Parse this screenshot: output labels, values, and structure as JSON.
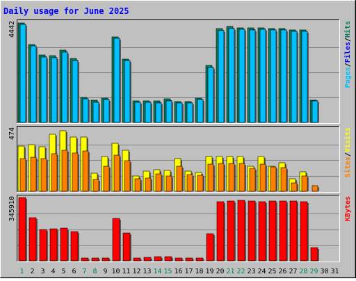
{
  "chart_data": {
    "title": "Daily usage for June 2025",
    "type": "bar",
    "days": [
      "1",
      "2",
      "3",
      "4",
      "5",
      "6",
      "7",
      "8",
      "9",
      "10",
      "11",
      "12",
      "13",
      "14",
      "15",
      "16",
      "17",
      "18",
      "19",
      "20",
      "21",
      "22",
      "23",
      "24",
      "25",
      "26",
      "27",
      "28",
      "29",
      "30",
      "31"
    ],
    "weekend_days": [
      "1",
      "7",
      "8",
      "14",
      "15",
      "21",
      "22",
      "28",
      "29"
    ],
    "panels": [
      {
        "id": "hits-files",
        "max_label": "4442",
        "ymax": 4442,
        "legend": [
          "Pages",
          "/",
          "Files",
          "/",
          "Hits"
        ],
        "series": [
          {
            "name": "Hits",
            "values": [
              4420,
              3470,
              2990,
              2970,
              3210,
              2840,
              1120,
              980,
              1080,
              3800,
              2820,
              950,
              950,
              950,
              1040,
              930,
              930,
              1080,
              2540,
              4170,
              4250,
              4210,
              4180,
              4190,
              4160,
              4160,
              4100,
              4090,
              980,
              0,
              0
            ]
          },
          {
            "name": "Files",
            "values": [
              4350,
              3380,
              2910,
              2880,
              3120,
              2760,
              1050,
              890,
              1010,
              3730,
              2750,
              890,
              880,
              870,
              960,
              860,
              860,
              1020,
              2450,
              4080,
              4160,
              4130,
              4100,
              4120,
              4100,
              4090,
              4050,
              4040,
              950,
              0,
              0
            ]
          },
          {
            "name": "Pages",
            "values": [
              4350,
              3380,
              2910,
              2880,
              3120,
              2760,
              1050,
              890,
              1010,
              3730,
              2750,
              890,
              880,
              870,
              960,
              860,
              860,
              1020,
              2450,
              4080,
              4160,
              4130,
              4100,
              4120,
              4100,
              4090,
              4050,
              4040,
              950,
              0,
              0
            ]
          }
        ]
      },
      {
        "id": "visits-sites",
        "max_label": "474",
        "ymax": 474,
        "legend": [
          "Sites",
          "/",
          "Visits"
        ],
        "series": [
          {
            "name": "Visits",
            "values": [
              340,
              352,
              338,
              432,
              460,
              410,
              410,
              135,
              265,
              362,
              312,
              115,
              155,
              165,
              160,
              250,
              155,
              140,
              265,
              262,
              265,
              262,
              188,
              262,
              192,
              218,
              95,
              150,
              0,
              0,
              0
            ]
          },
          {
            "name": "Sites",
            "values": [
              250,
              260,
              248,
              285,
              310,
              290,
              305,
              90,
              190,
              275,
              230,
              95,
              98,
              130,
              118,
              190,
              128,
              122,
              208,
              210,
              212,
              210,
              172,
              205,
              185,
              180,
              65,
              118,
              40,
              0,
              0
            ]
          }
        ]
      },
      {
        "id": "kbytes",
        "max_label": "345910",
        "ymax": 345910,
        "legend": [
          "KBytes"
        ],
        "series": [
          {
            "name": "KBytes",
            "values": [
              345910,
              236000,
              171000,
              175000,
              180000,
              159000,
              14000,
              14000,
              14000,
              232000,
              152000,
              17000,
              20000,
              22000,
              21000,
              16000,
              16000,
              16000,
              147000,
              322000,
              326000,
              330000,
              327000,
              323000,
              327000,
              327000,
              328000,
              323000,
              74000,
              0,
              0
            ]
          }
        ]
      }
    ]
  },
  "colors": {
    "background": "#c0c0c0",
    "title": "#0000ff",
    "hits": "#00805c",
    "files": "#0000ff",
    "pages": "#00c0ff",
    "visits": "#ffff00",
    "sites": "#ff8000",
    "kbytes": "#ff0000",
    "weekday_label": "#000000",
    "weekend_label": "#00805c"
  }
}
